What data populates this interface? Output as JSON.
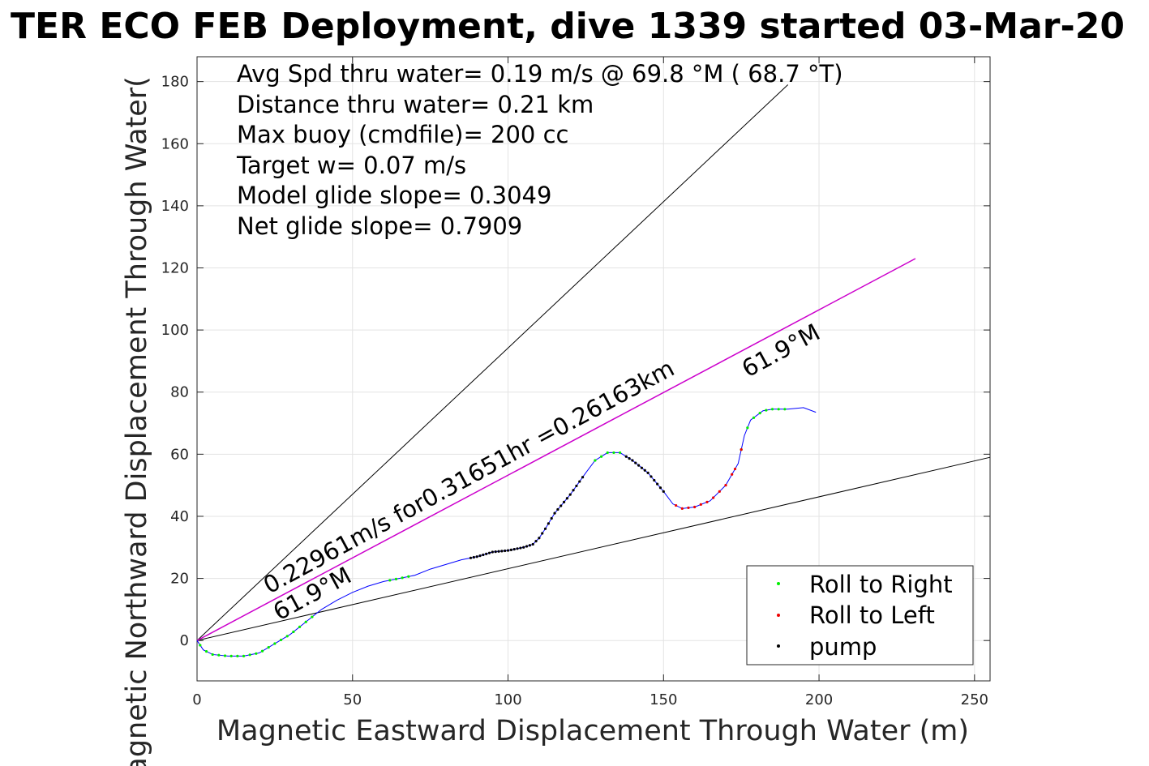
{
  "chart_data": {
    "type": "line",
    "title": "TER ECO FEB Deployment, dive 1339 started 03-Mar-20",
    "xlabel": "Magnetic Eastward Displacement Through Water (m)",
    "ylabel": "Magnetic Northward Displacement Through Water(",
    "xlim": [
      0,
      255
    ],
    "ylim": [
      -13,
      188
    ],
    "xticks": [
      0,
      50,
      100,
      150,
      200,
      250
    ],
    "yticks": [
      0,
      20,
      40,
      60,
      80,
      100,
      120,
      140,
      160,
      180
    ],
    "grid": true,
    "annotation_lines": [
      "Avg Spd thru water=  0.19 m/s @  69.8 °M ( 68.7 °T)",
      "Distance thru water=  0.21 km",
      "Max buoy (cmdfile)= 200 cc",
      "Target w= 0.07 m/s",
      "Model glide slope= 0.3049",
      "Net glide slope= 0.7909"
    ],
    "label_upper": "61.9°M",
    "label_lower": "61.9°M",
    "label_heading_line": "0.22961m/s for0.31651hr =0.26163km",
    "guide_lines": [
      {
        "name": "glide-upper",
        "color": "#000000",
        "x": [
          0,
          190
        ],
        "y": [
          0,
          179
        ]
      },
      {
        "name": "glide-lower",
        "color": "#000000",
        "x": [
          0,
          255
        ],
        "y": [
          0,
          59
        ]
      },
      {
        "name": "heading",
        "color": "#cc00cc",
        "x": [
          0,
          231
        ],
        "y": [
          0,
          123
        ]
      }
    ],
    "track": {
      "color": "#0000ff",
      "x": [
        0,
        2,
        5,
        10,
        15,
        20,
        25,
        30,
        35,
        40,
        45,
        50,
        55,
        60,
        65,
        70,
        75,
        80,
        85,
        90,
        95,
        100,
        105,
        108,
        110,
        112,
        115,
        120,
        125,
        128,
        132,
        136,
        140,
        145,
        150,
        153,
        156,
        160,
        165,
        170,
        174,
        176,
        178,
        182,
        185,
        190,
        195,
        199
      ],
      "y": [
        0,
        -3,
        -4.5,
        -5,
        -5,
        -4,
        -1,
        2,
        6,
        10,
        13,
        15.5,
        17.5,
        19,
        20,
        21,
        23,
        24.5,
        26,
        27,
        28.5,
        29,
        30,
        31,
        33,
        36,
        41,
        47,
        54,
        58,
        60.5,
        60.5,
        58,
        54,
        48,
        44,
        42.5,
        43,
        45,
        50,
        57,
        66,
        71,
        74,
        74.5,
        74.5,
        75,
        73.5
      ]
    },
    "legend": {
      "placement": "bottom-right",
      "entries": [
        {
          "label": "Roll to Right",
          "color": "#00ee00"
        },
        {
          "label": "Roll to Left",
          "color": "#ee0000"
        },
        {
          "label": "pump",
          "color": "#000000"
        }
      ]
    },
    "roll_right_segments": [
      [
        1,
        37
      ],
      [
        62,
        68
      ],
      [
        128,
        136
      ],
      [
        175,
        190
      ]
    ],
    "roll_left_segments": [
      [
        154,
        172
      ],
      [
        173,
        176
      ]
    ],
    "pump_segments": [
      [
        88,
        124
      ],
      [
        138,
        150
      ]
    ],
    "marker_step_m": 2
  }
}
